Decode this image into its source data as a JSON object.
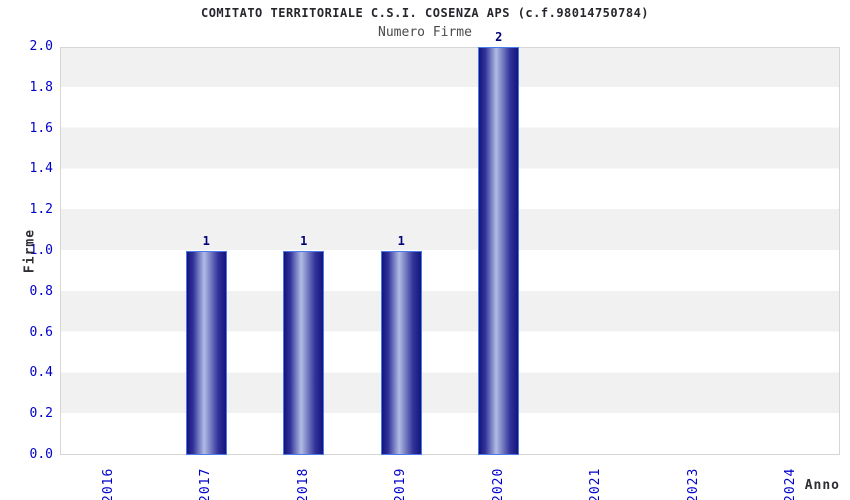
{
  "chart_data": {
    "type": "bar",
    "title": "COMITATO TERRITORIALE C.S.I. COSENZA APS (c.f.98014750784)",
    "subtitle": "Numero Firme",
    "xlabel": "Anno",
    "ylabel": "Firme",
    "categories": [
      "2016",
      "2017",
      "2018",
      "2019",
      "2020",
      "2021",
      "2023",
      "2024"
    ],
    "values": [
      0,
      1,
      1,
      1,
      2,
      0,
      0,
      0
    ],
    "bar_value_labels": [
      "",
      "1",
      "1",
      "1",
      "2",
      "",
      "",
      ""
    ],
    "ylim": [
      0.0,
      2.0
    ],
    "ytick_labels": [
      "0.0",
      "0.2",
      "0.4",
      "0.6",
      "0.8",
      "1.0",
      "1.2",
      "1.4",
      "1.6",
      "1.8",
      "2.0"
    ],
    "grid": "horizontal striped bands, alternating white and light gray every 0.2",
    "legend_position": "none"
  },
  "colors": {
    "title_color": "#26262c",
    "subtitle_color": "#4b4b4b",
    "tick_color": "#0000cc",
    "axis_title_color": "#2e2e34",
    "bar_label_color": "#000078",
    "bar_dark": "#14147e",
    "bar_mid": "#32329a",
    "bar_light": "#b0bce4",
    "bar_border": "#4a7ae6",
    "stripe": "#f1f1f1",
    "plot_border": "#d6d6d6"
  }
}
